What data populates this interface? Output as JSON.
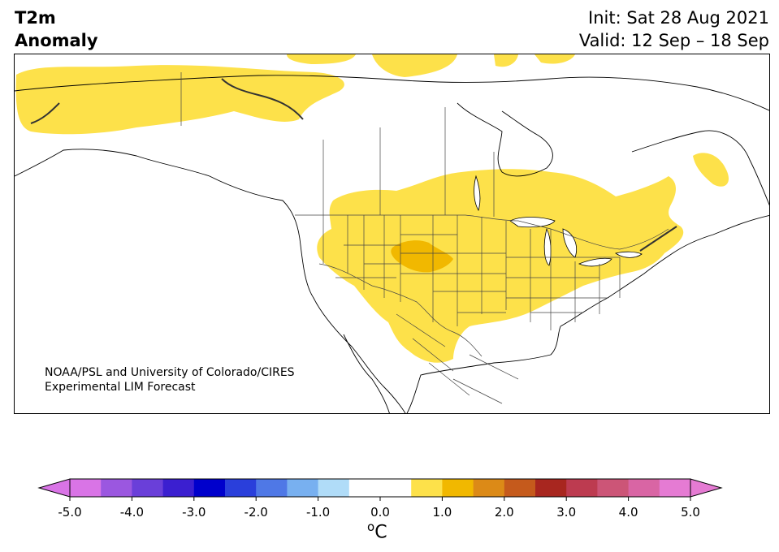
{
  "title": {
    "line1": "T2m",
    "line2": "Anomaly"
  },
  "init_label": "Init: Sat 28 Aug 2021",
  "valid_label": "Valid: 12 Sep – 18 Sep",
  "credit": {
    "line1": "NOAA/PSL and University of Colorado/CIRES",
    "line2": "Experimental LIM Forecast"
  },
  "colorbar": {
    "unit": "C",
    "unit_superscript": "o",
    "tick_labels": [
      "-5.0",
      "-4.0",
      "-3.0",
      "-2.0",
      "-1.0",
      "0.0",
      "1.0",
      "2.0",
      "3.0",
      "4.0",
      "5.0"
    ],
    "bins": [
      {
        "range": "< -5.0",
        "color": "#d974e6"
      },
      {
        "range": "-5.0 to -4.5",
        "color": "#d974e6"
      },
      {
        "range": "-4.5 to -4.0",
        "color": "#9b57e0"
      },
      {
        "range": "-4.0 to -3.5",
        "color": "#6a3fd9"
      },
      {
        "range": "-3.5 to -3.0",
        "color": "#3b1fd0"
      },
      {
        "range": "-3.0 to -2.5",
        "color": "#0000cc"
      },
      {
        "range": "-2.5 to -2.0",
        "color": "#2a3fdb"
      },
      {
        "range": "-2.0 to -1.5",
        "color": "#4f78e6"
      },
      {
        "range": "-1.5 to -1.0",
        "color": "#78b0f0"
      },
      {
        "range": "-1.0 to -0.5",
        "color": "#b0dcf8"
      },
      {
        "range": "-0.5 to 0.0",
        "color": "#ffffff"
      },
      {
        "range": "0.0 to 0.5",
        "color": "#ffffff"
      },
      {
        "range": "0.5 to 1.0",
        "color": "#fde14a"
      },
      {
        "range": "1.0 to 1.5",
        "color": "#f1b800"
      },
      {
        "range": "1.5 to 2.0",
        "color": "#dc8a17"
      },
      {
        "range": "2.0 to 2.5",
        "color": "#c55a1c"
      },
      {
        "range": "2.5 to 3.0",
        "color": "#a8261f"
      },
      {
        "range": "3.0 to 3.5",
        "color": "#bd3b50"
      },
      {
        "range": "3.5 to 4.0",
        "color": "#cc5577"
      },
      {
        "range": "4.0 to 4.5",
        "color": "#d965a4"
      },
      {
        "range": "4.5 to 5.0",
        "color": "#e57bd3"
      },
      {
        "range": "> 5.0",
        "color": "#e57bd3"
      }
    ]
  },
  "map": {
    "region": "North America",
    "variable": "2m temperature anomaly",
    "anomaly_areas": [
      {
        "name": "Alaska / Yukon / NW Canada",
        "level": "0.5 to 1.0"
      },
      {
        "name": "Canadian Arctic islands",
        "level": "0.5 to 1.0"
      },
      {
        "name": "Central / Eastern US and Southern Canada",
        "level": "0.5 to 1.0"
      },
      {
        "name": "Colorado / Wyoming / Nebraska",
        "level": "1.0 to 1.5"
      },
      {
        "name": "Labrador coast",
        "level": "0.5 to 1.0"
      }
    ],
    "colors": {
      "weak_warm": "#fde14a",
      "moderate_warm": "#f1b800",
      "coastline": "#000000",
      "borders": "#333333"
    }
  }
}
